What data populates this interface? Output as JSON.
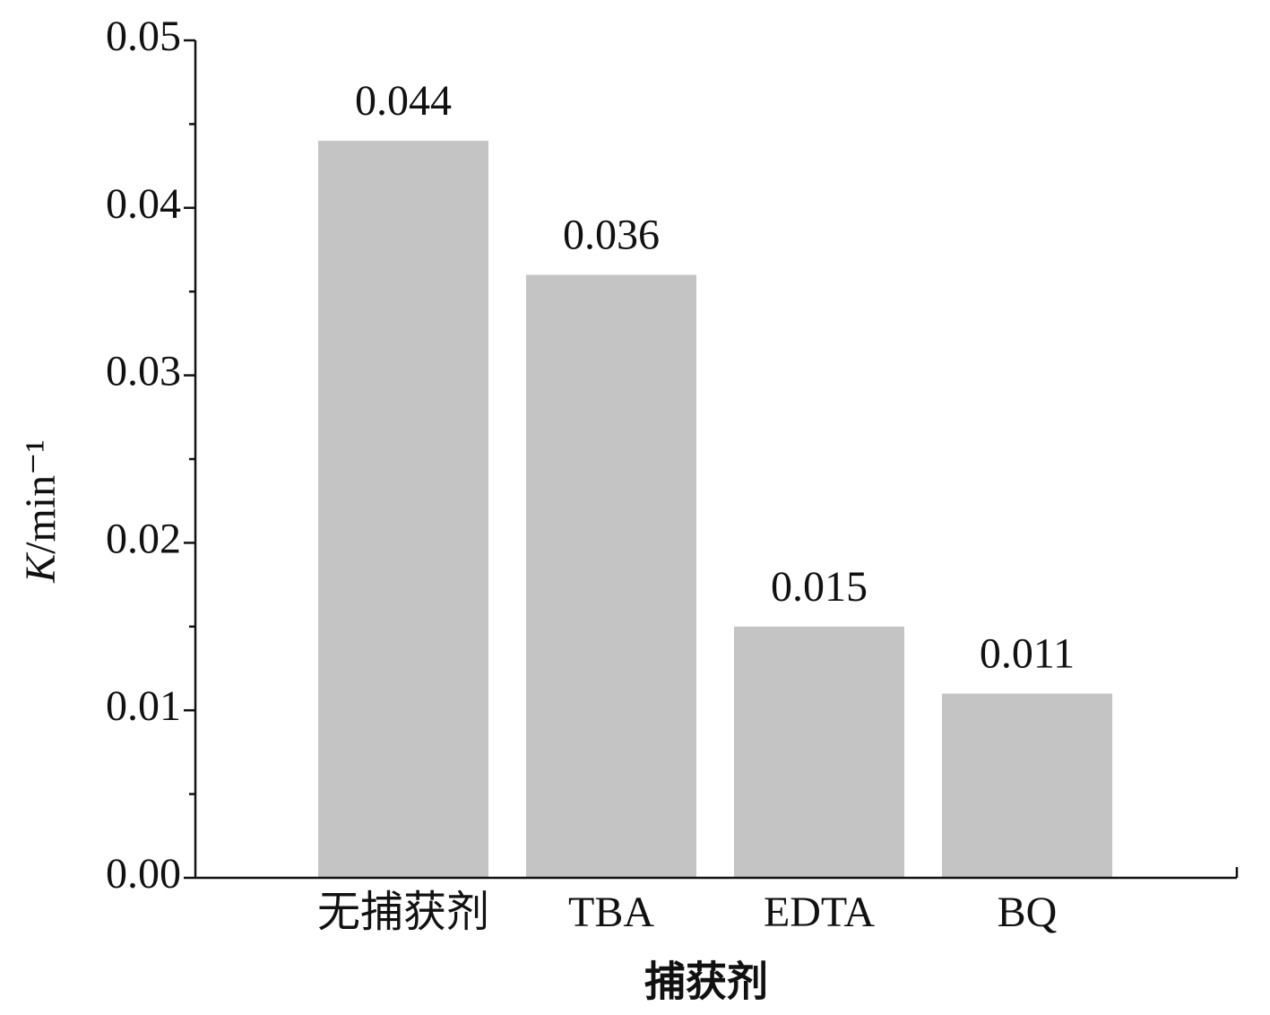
{
  "chart_data": {
    "type": "bar",
    "x_label": "捕获剂",
    "y_label": "K/min⁻¹",
    "categories": [
      "无捕获剂",
      "TBA",
      "EDTA",
      "BQ"
    ],
    "values": [
      0.044,
      0.036,
      0.015,
      0.011
    ],
    "color": "#c4c4c4",
    "ylim": [
      0,
      0.05
    ],
    "yticks": [
      {
        "value": 0,
        "label": "0.00"
      },
      0.01,
      0.02,
      0.03,
      0.04,
      0.05
    ],
    "minor_yticks": [
      0.005,
      0.015,
      0.025,
      0.035,
      0.045
    ],
    "grid": false
  }
}
